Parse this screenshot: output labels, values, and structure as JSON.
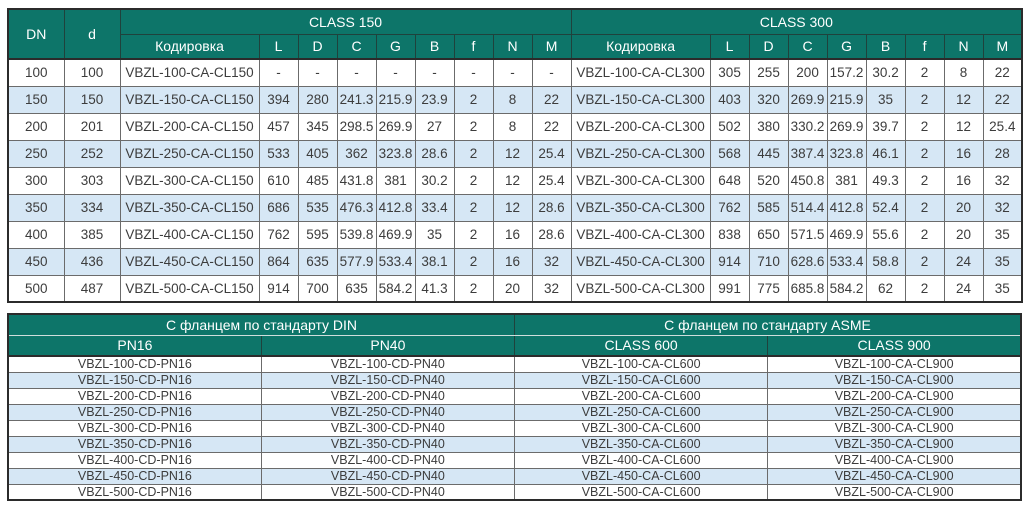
{
  "colors": {
    "header_teal": "#0d7569",
    "row_alternate_blue": "#d6e7f5",
    "row_plain": "#ffffff",
    "outer_border": "#2b2b2b",
    "inner_border": "#6b6b6b",
    "text": "#3c3c3c",
    "header_text": "#ffffff"
  },
  "dimension_table": {
    "col_dn": "DN",
    "col_d": "d",
    "groups": [
      {
        "title": "CLASS 150",
        "subcols": [
          "Кодировка",
          "L",
          "D",
          "C",
          "G",
          "B",
          "f",
          "N",
          "M"
        ]
      },
      {
        "title": "CLASS 300",
        "subcols": [
          "Кодировка",
          "L",
          "D",
          "C",
          "G",
          "B",
          "f",
          "N",
          "M"
        ]
      }
    ],
    "rows": [
      {
        "dn": "100",
        "d": "100",
        "cl150": [
          "VBZL-100-CA-CL150",
          "-",
          "-",
          "-",
          "-",
          "-",
          "-",
          "-",
          "-"
        ],
        "cl300": [
          "VBZL-100-CA-CL300",
          "305",
          "255",
          "200",
          "157.2",
          "30.2",
          "2",
          "8",
          "22"
        ]
      },
      {
        "dn": "150",
        "d": "150",
        "cl150": [
          "VBZL-150-CA-CL150",
          "394",
          "280",
          "241.3",
          "215.9",
          "23.9",
          "2",
          "8",
          "22"
        ],
        "cl300": [
          "VBZL-150-CA-CL300",
          "403",
          "320",
          "269.9",
          "215.9",
          "35",
          "2",
          "12",
          "22"
        ]
      },
      {
        "dn": "200",
        "d": "201",
        "cl150": [
          "VBZL-200-CA-CL150",
          "457",
          "345",
          "298.5",
          "269.9",
          "27",
          "2",
          "8",
          "22"
        ],
        "cl300": [
          "VBZL-200-CA-CL300",
          "502",
          "380",
          "330.2",
          "269.9",
          "39.7",
          "2",
          "12",
          "25.4"
        ]
      },
      {
        "dn": "250",
        "d": "252",
        "cl150": [
          "VBZL-250-CA-CL150",
          "533",
          "405",
          "362",
          "323.8",
          "28.6",
          "2",
          "12",
          "25.4"
        ],
        "cl300": [
          "VBZL-250-CA-CL300",
          "568",
          "445",
          "387.4",
          "323.8",
          "46.1",
          "2",
          "16",
          "28"
        ]
      },
      {
        "dn": "300",
        "d": "303",
        "cl150": [
          "VBZL-300-CA-CL150",
          "610",
          "485",
          "431.8",
          "381",
          "30.2",
          "2",
          "12",
          "25.4"
        ],
        "cl300": [
          "VBZL-300-CA-CL300",
          "648",
          "520",
          "450.8",
          "381",
          "49.3",
          "2",
          "16",
          "32"
        ]
      },
      {
        "dn": "350",
        "d": "334",
        "cl150": [
          "VBZL-350-CA-CL150",
          "686",
          "535",
          "476.3",
          "412.8",
          "33.4",
          "2",
          "12",
          "28.6"
        ],
        "cl300": [
          "VBZL-350-CA-CL300",
          "762",
          "585",
          "514.4",
          "412.8",
          "52.4",
          "2",
          "20",
          "32"
        ]
      },
      {
        "dn": "400",
        "d": "385",
        "cl150": [
          "VBZL-400-CA-CL150",
          "762",
          "595",
          "539.8",
          "469.9",
          "35",
          "2",
          "16",
          "28.6"
        ],
        "cl300": [
          "VBZL-400-CA-CL300",
          "838",
          "650",
          "571.5",
          "469.9",
          "55.6",
          "2",
          "20",
          "35"
        ]
      },
      {
        "dn": "450",
        "d": "436",
        "cl150": [
          "VBZL-450-CA-CL150",
          "864",
          "635",
          "577.9",
          "533.4",
          "38.1",
          "2",
          "16",
          "32"
        ],
        "cl300": [
          "VBZL-450-CA-CL300",
          "914",
          "710",
          "628.6",
          "533.4",
          "58.8",
          "2",
          "24",
          "35"
        ]
      },
      {
        "dn": "500",
        "d": "487",
        "cl150": [
          "VBZL-500-CA-CL150",
          "914",
          "700",
          "635",
          "584.2",
          "41.3",
          "2",
          "20",
          "32"
        ],
        "cl300": [
          "VBZL-500-CA-CL300",
          "991",
          "775",
          "685.8",
          "584.2",
          "62",
          "2",
          "24",
          "35"
        ]
      }
    ]
  },
  "flange_table": {
    "groups": [
      {
        "title": "С фланцем по стандарту DIN",
        "subcols": [
          "PN16",
          "PN40"
        ]
      },
      {
        "title": "С фланцем по стандарту ASME",
        "subcols": [
          "CLASS 600",
          "CLASS 900"
        ]
      }
    ],
    "rows": [
      [
        "VBZL-100-CD-PN16",
        "VBZL-100-CD-PN40",
        "VBZL-100-CA-CL600",
        "VBZL-100-CA-CL900"
      ],
      [
        "VBZL-150-CD-PN16",
        "VBZL-150-CD-PN40",
        "VBZL-150-CA-CL600",
        "VBZL-150-CA-CL900"
      ],
      [
        "VBZL-200-CD-PN16",
        "VBZL-200-CD-PN40",
        "VBZL-200-CA-CL600",
        "VBZL-200-CA-CL900"
      ],
      [
        "VBZL-250-CD-PN16",
        "VBZL-250-CD-PN40",
        "VBZL-250-CA-CL600",
        "VBZL-250-CA-CL900"
      ],
      [
        "VBZL-300-CD-PN16",
        "VBZL-300-CD-PN40",
        "VBZL-300-CA-CL600",
        "VBZL-300-CA-CL900"
      ],
      [
        "VBZL-350-CD-PN16",
        "VBZL-350-CD-PN40",
        "VBZL-350-CA-CL600",
        "VBZL-350-CA-CL900"
      ],
      [
        "VBZL-400-CD-PN16",
        "VBZL-400-CD-PN40",
        "VBZL-400-CA-CL600",
        "VBZL-400-CA-CL900"
      ],
      [
        "VBZL-450-CD-PN16",
        "VBZL-450-CD-PN40",
        "VBZL-450-CA-CL600",
        "VBZL-450-CA-CL900"
      ],
      [
        "VBZL-500-CD-PN16",
        "VBZL-500-CD-PN40",
        "VBZL-500-CA-CL600",
        "VBZL-500-CA-CL900"
      ]
    ]
  }
}
